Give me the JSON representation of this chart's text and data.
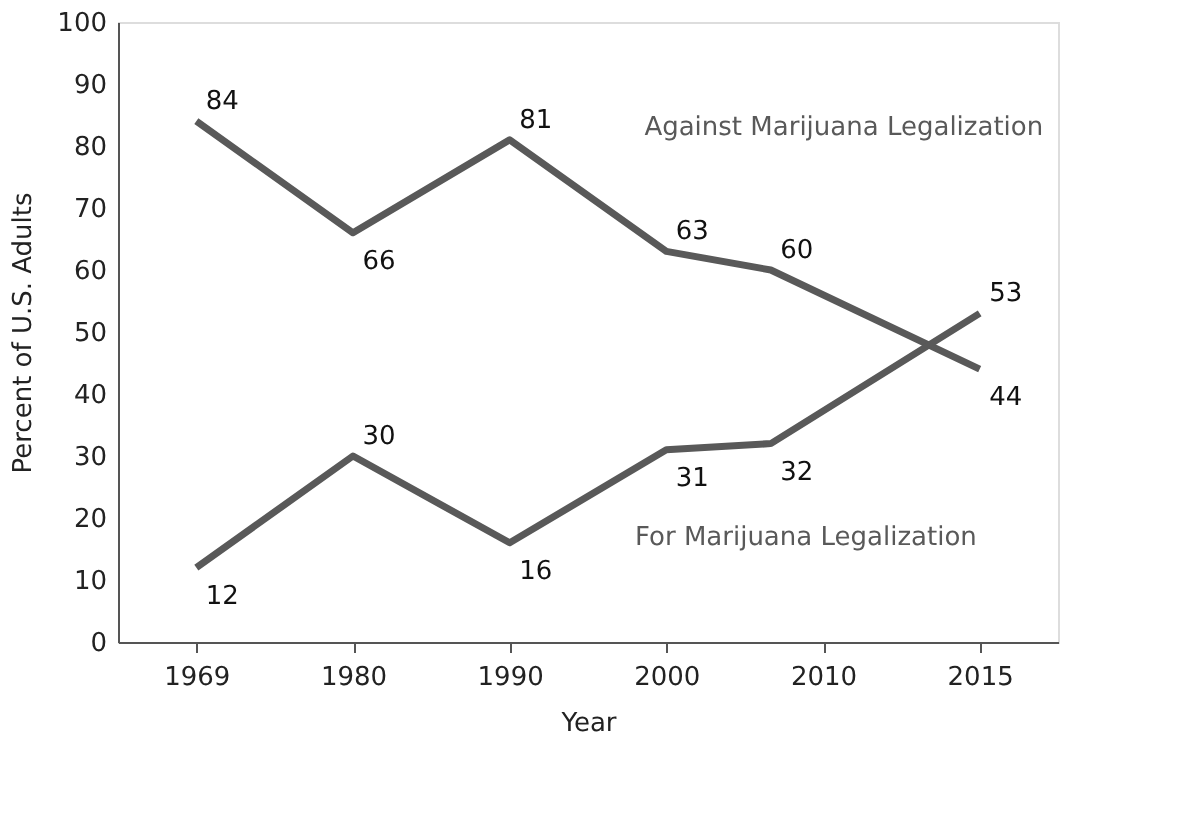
{
  "chart_data": {
    "type": "line",
    "xlabel": "Year",
    "ylabel": "Percent of U.S. Adults",
    "categories": [
      "1969",
      null,
      null,
      "1980",
      null,
      null,
      "1990",
      null,
      null,
      "2000",
      null,
      null,
      "2010",
      null,
      null,
      "2015"
    ],
    "series": [
      {
        "name": "Against Marijuana Legalization",
        "color": "#595959",
        "values": [
          84,
          null,
          null,
          66,
          null,
          null,
          81,
          null,
          null,
          63,
          null,
          60,
          null,
          null,
          null,
          44
        ]
      },
      {
        "name": "For Marijuana Legalization",
        "color": "#595959",
        "values": [
          12,
          null,
          null,
          30,
          null,
          null,
          16,
          null,
          null,
          31,
          null,
          32,
          null,
          null,
          null,
          53
        ]
      }
    ],
    "ylim": [
      0,
      100
    ],
    "yticks": [
      0,
      10,
      20,
      30,
      40,
      50,
      60,
      70,
      80,
      90,
      100
    ],
    "data_labels": true,
    "grid": false,
    "marker": "none",
    "line_style": "solid"
  }
}
